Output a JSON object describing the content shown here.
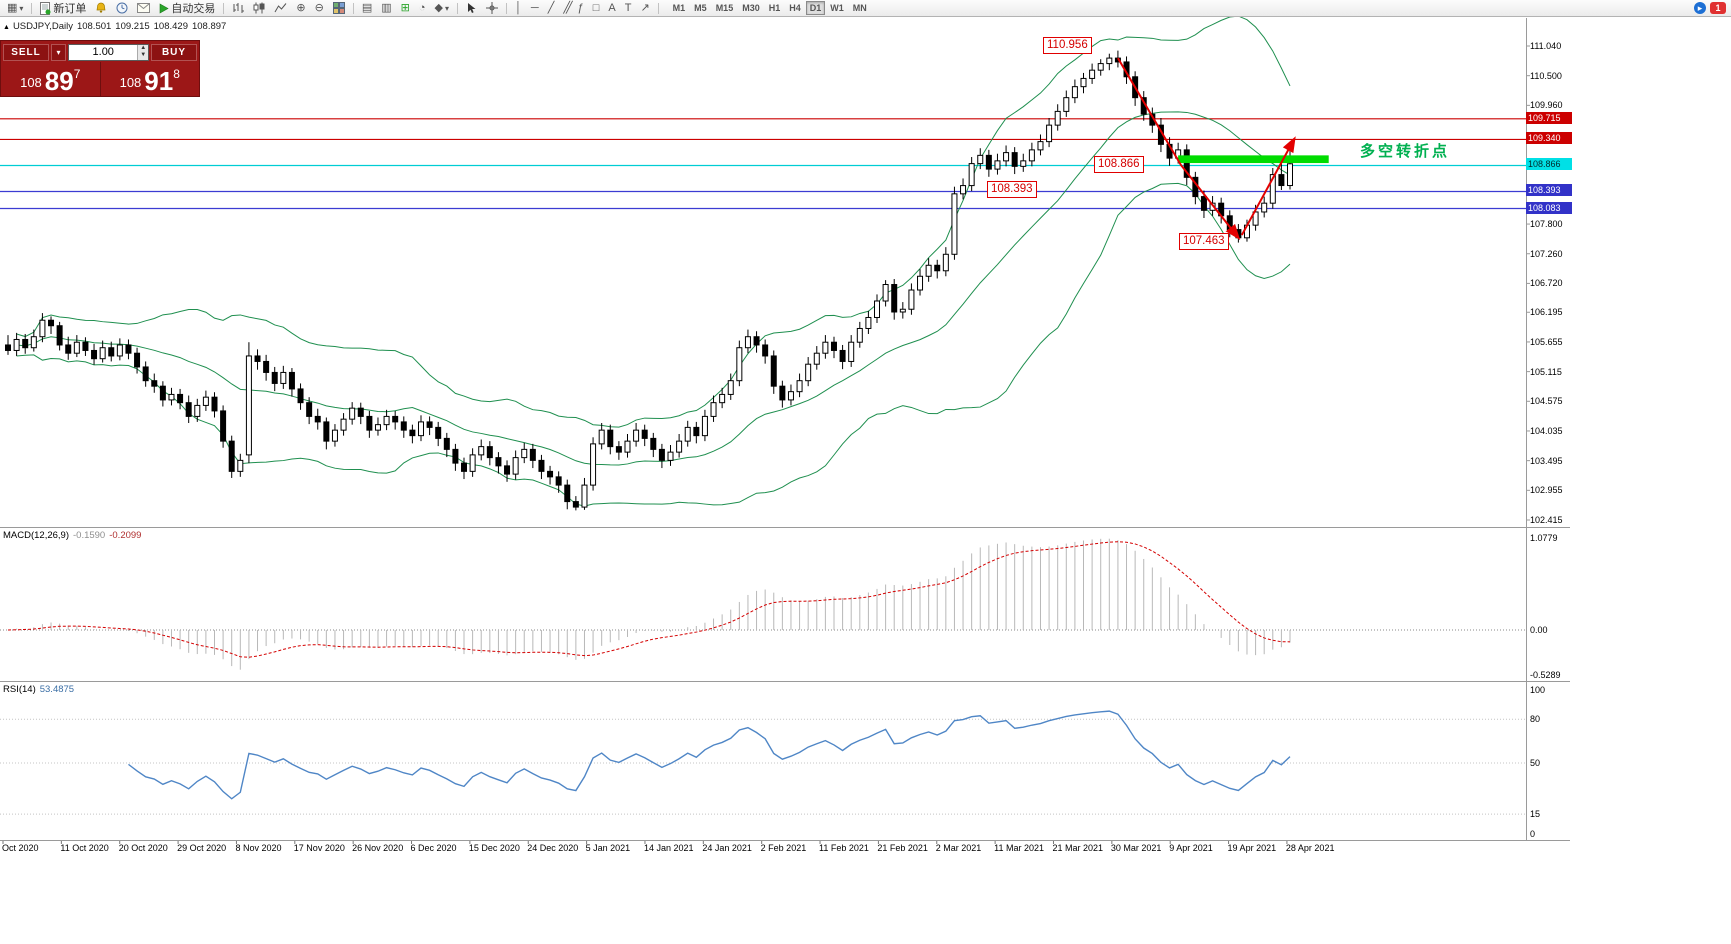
{
  "toolbar": {
    "new_order_label": "新订单",
    "autotrade_label": "自动交易",
    "badge": "1",
    "timeframes": [
      {
        "label": "M1",
        "active": false
      },
      {
        "label": "M5",
        "active": false
      },
      {
        "label": "M15",
        "active": false
      },
      {
        "label": "M30",
        "active": false
      },
      {
        "label": "H1",
        "active": false
      },
      {
        "label": "H4",
        "active": false
      },
      {
        "label": "D1",
        "active": true
      },
      {
        "label": "W1",
        "active": false
      },
      {
        "label": "MN",
        "active": false
      }
    ]
  },
  "symbol_info": {
    "symbol": "USDJPY,Daily",
    "open": "108.501",
    "high": "109.215",
    "low": "108.429",
    "close": "108.897"
  },
  "trade_widget": {
    "sell_label": "SELL",
    "buy_label": "BUY",
    "lot": "1.00",
    "sell": {
      "prefix": "108",
      "big": "89",
      "sup": "7"
    },
    "buy": {
      "prefix": "108",
      "big": "91",
      "sup": "8"
    }
  },
  "annotations": {
    "peak": "110.956",
    "zone": "108.866",
    "support": "108.393",
    "trough": "107.463",
    "note": "多空转折点"
  },
  "price_axis": {
    "ticks": [
      {
        "label": "111.040",
        "price": 111.04
      },
      {
        "label": "110.500",
        "price": 110.5
      },
      {
        "label": "109.960",
        "price": 109.96
      },
      {
        "label": "107.800",
        "price": 107.8
      },
      {
        "label": "107.260",
        "price": 107.26
      },
      {
        "label": "106.720",
        "price": 106.72
      },
      {
        "label": "106.195",
        "price": 106.195
      },
      {
        "label": "105.655",
        "price": 105.655
      },
      {
        "label": "105.115",
        "price": 105.115
      },
      {
        "label": "104.575",
        "price": 104.575
      },
      {
        "label": "104.035",
        "price": 104.035
      },
      {
        "label": "103.495",
        "price": 103.495
      },
      {
        "label": "102.955",
        "price": 102.955
      },
      {
        "label": "102.415",
        "price": 102.415
      }
    ]
  },
  "overlays": {
    "hlines": [
      {
        "label": "109.715",
        "price": 109.715,
        "line_color": "#cc0000",
        "bg": "#cc0000",
        "fg": "#ffffff"
      },
      {
        "label": "109.340",
        "price": 109.34,
        "line_color": "#cc0000",
        "bg": "#cc0000",
        "fg": "#ffffff"
      },
      {
        "label": "108.866",
        "price": 108.866,
        "line_color": "#00cdd4",
        "bg": "#00e0e6",
        "fg": "#00292b"
      },
      {
        "label": "108.393",
        "price": 108.393,
        "line_color": "#3c3cd2",
        "bg": "#3232c8",
        "fg": "#ffffff"
      },
      {
        "label": "108.083",
        "price": 108.083,
        "line_color": "#3c3cd2",
        "bg": "#3232c8",
        "fg": "#ffffff"
      }
    ],
    "turning_zone": {
      "from_day": 136,
      "to_day": 153.5,
      "top_price": 109.05,
      "bottom_price": 108.91,
      "color": "#00dc00"
    },
    "trend_lines": [
      {
        "points": [
          [
            129,
            110.82
          ],
          [
            136.3,
            108.88
          ],
          [
            143,
            107.55
          ]
        ],
        "color": "#e30000"
      },
      {
        "points": [
          [
            143.4,
            107.6
          ],
          [
            149.5,
            109.35
          ]
        ],
        "color": "#e30000"
      }
    ]
  },
  "indicators": {
    "bollinger": {
      "period": 20,
      "deviation": 2,
      "color": "#1f8f4f"
    },
    "macd": {
      "label": "MACD(12,26,9)",
      "value_main": "-0.1590",
      "value_signal": "-0.2099",
      "fast": 12,
      "slow": 26,
      "signal": 9,
      "axis_labels": [
        {
          "label": "1.0779",
          "value": 1.0779
        },
        {
          "label": "0.00",
          "value": 0
        },
        {
          "label": "-0.5289",
          "value": -0.5289
        }
      ],
      "hist_color": "#b8b8b8",
      "signal_color": "#d40000"
    },
    "rsi": {
      "label": "RSI(14)",
      "value": "53.4875",
      "period": 14,
      "color": "#4f86c6",
      "axis_labels": [
        {
          "label": "100",
          "value": 100
        },
        {
          "label": "80",
          "value": 80
        },
        {
          "label": "50",
          "value": 50
        },
        {
          "label": "15",
          "value": 15
        },
        {
          "label": "0",
          "value": 0
        }
      ],
      "levels": [
        80,
        50,
        15
      ]
    }
  },
  "chart_data": {
    "type": "candlestick",
    "symbol": "USDJPY",
    "timeframe": "Daily",
    "ylim": [
      102.415,
      111.04
    ],
    "dates": [
      "Oct 2020",
      "11 Oct 2020",
      "20 Oct 2020",
      "29 Oct 2020",
      "8 Nov 2020",
      "17 Nov 2020",
      "26 Nov 2020",
      "6 Dec 2020",
      "15 Dec 2020",
      "24 Dec 2020",
      "5 Jan 2021",
      "14 Jan 2021",
      "24 Jan 2021",
      "2 Feb 2021",
      "11 Feb 2021",
      "21 Feb 2021",
      "2 Mar 2021",
      "11 Mar 2021",
      "21 Mar 2021",
      "30 Mar 2021",
      "9 Apr 2021",
      "19 Apr 2021",
      "28 Apr 2021"
    ],
    "candles": [
      [
        105.6,
        105.78,
        105.42,
        105.5
      ],
      [
        105.5,
        105.82,
        105.4,
        105.7
      ],
      [
        105.7,
        105.8,
        105.44,
        105.55
      ],
      [
        105.55,
        105.88,
        105.48,
        105.75
      ],
      [
        105.75,
        106.18,
        105.65,
        106.05
      ],
      [
        106.05,
        106.12,
        105.8,
        105.95
      ],
      [
        105.95,
        106.02,
        105.5,
        105.6
      ],
      [
        105.6,
        105.75,
        105.33,
        105.45
      ],
      [
        105.45,
        105.78,
        105.38,
        105.65
      ],
      [
        105.65,
        105.74,
        105.4,
        105.5
      ],
      [
        105.5,
        105.62,
        105.24,
        105.35
      ],
      [
        105.35,
        105.68,
        105.28,
        105.55
      ],
      [
        105.55,
        105.66,
        105.3,
        105.4
      ],
      [
        105.4,
        105.72,
        105.32,
        105.6
      ],
      [
        105.6,
        105.7,
        105.34,
        105.45
      ],
      [
        105.45,
        105.55,
        105.08,
        105.2
      ],
      [
        105.2,
        105.3,
        104.84,
        104.95
      ],
      [
        104.95,
        105.08,
        104.73,
        104.85
      ],
      [
        104.85,
        104.94,
        104.48,
        104.6
      ],
      [
        104.6,
        104.82,
        104.5,
        104.7
      ],
      [
        104.7,
        104.8,
        104.43,
        104.55
      ],
      [
        104.55,
        104.68,
        104.18,
        104.3
      ],
      [
        104.3,
        104.62,
        104.2,
        104.5
      ],
      [
        104.5,
        104.77,
        104.4,
        104.65
      ],
      [
        104.65,
        104.74,
        104.28,
        104.4
      ],
      [
        104.4,
        104.5,
        103.73,
        103.85
      ],
      [
        103.85,
        103.95,
        103.18,
        103.3
      ],
      [
        103.3,
        103.62,
        103.2,
        103.5
      ],
      [
        103.6,
        105.65,
        103.45,
        105.4
      ],
      [
        105.4,
        105.52,
        105.15,
        105.3
      ],
      [
        105.3,
        105.42,
        104.95,
        105.1
      ],
      [
        105.1,
        105.2,
        104.76,
        104.9
      ],
      [
        104.9,
        105.22,
        104.8,
        105.1
      ],
      [
        105.1,
        105.18,
        104.66,
        104.8
      ],
      [
        104.8,
        104.9,
        104.42,
        104.55
      ],
      [
        104.55,
        104.65,
        104.16,
        104.3
      ],
      [
        104.3,
        104.44,
        104.06,
        104.2
      ],
      [
        104.2,
        104.28,
        103.7,
        103.85
      ],
      [
        103.85,
        104.16,
        103.75,
        104.05
      ],
      [
        104.05,
        104.36,
        103.95,
        104.25
      ],
      [
        104.25,
        104.56,
        104.15,
        104.45
      ],
      [
        104.45,
        104.55,
        104.16,
        104.3
      ],
      [
        104.3,
        104.4,
        103.91,
        104.05
      ],
      [
        104.05,
        104.28,
        103.95,
        104.15
      ],
      [
        104.15,
        104.42,
        104.05,
        104.3
      ],
      [
        104.3,
        104.4,
        104.06,
        104.2
      ],
      [
        104.2,
        104.3,
        103.91,
        104.05
      ],
      [
        104.05,
        104.15,
        103.81,
        103.95
      ],
      [
        103.95,
        104.32,
        103.85,
        104.2
      ],
      [
        104.2,
        104.3,
        103.96,
        104.1
      ],
      [
        104.1,
        104.2,
        103.76,
        103.9
      ],
      [
        103.9,
        104.0,
        103.56,
        103.7
      ],
      [
        103.7,
        103.8,
        103.31,
        103.45
      ],
      [
        103.45,
        103.55,
        103.16,
        103.3
      ],
      [
        103.3,
        103.72,
        103.2,
        103.6
      ],
      [
        103.6,
        103.88,
        103.5,
        103.75
      ],
      [
        103.75,
        103.85,
        103.41,
        103.55
      ],
      [
        103.55,
        103.65,
        103.26,
        103.4
      ],
      [
        103.4,
        103.5,
        103.11,
        103.25
      ],
      [
        103.25,
        103.68,
        103.15,
        103.55
      ],
      [
        103.55,
        103.82,
        103.45,
        103.7
      ],
      [
        103.7,
        103.8,
        103.36,
        103.5
      ],
      [
        103.5,
        103.6,
        103.16,
        103.3
      ],
      [
        103.3,
        103.4,
        103.06,
        103.2
      ],
      [
        103.2,
        103.3,
        102.91,
        103.05
      ],
      [
        103.05,
        103.15,
        102.61,
        102.75
      ],
      [
        102.75,
        102.85,
        102.59,
        102.65
      ],
      [
        102.65,
        103.18,
        102.6,
        103.05
      ],
      [
        103.05,
        103.92,
        102.95,
        103.8
      ],
      [
        103.8,
        104.18,
        103.7,
        104.05
      ],
      [
        104.05,
        104.15,
        103.61,
        103.75
      ],
      [
        103.75,
        103.85,
        103.51,
        103.65
      ],
      [
        103.65,
        103.98,
        103.55,
        103.85
      ],
      [
        103.85,
        104.18,
        103.75,
        104.05
      ],
      [
        104.05,
        104.15,
        103.76,
        103.9
      ],
      [
        103.9,
        104.0,
        103.56,
        103.7
      ],
      [
        103.7,
        103.8,
        103.36,
        103.5
      ],
      [
        103.5,
        103.78,
        103.4,
        103.65
      ],
      [
        103.65,
        103.98,
        103.55,
        103.85
      ],
      [
        103.85,
        104.22,
        103.75,
        104.1
      ],
      [
        104.1,
        104.2,
        103.81,
        103.95
      ],
      [
        103.95,
        104.42,
        103.85,
        104.3
      ],
      [
        104.3,
        104.68,
        104.2,
        104.55
      ],
      [
        104.55,
        104.82,
        104.45,
        104.7
      ],
      [
        104.7,
        105.08,
        104.6,
        104.95
      ],
      [
        104.95,
        105.68,
        104.85,
        105.55
      ],
      [
        105.55,
        105.88,
        105.45,
        105.75
      ],
      [
        105.75,
        105.85,
        105.46,
        105.6
      ],
      [
        105.6,
        105.7,
        105.26,
        105.4
      ],
      [
        105.4,
        105.5,
        104.71,
        104.85
      ],
      [
        104.85,
        104.95,
        104.46,
        104.6
      ],
      [
        104.6,
        104.88,
        104.5,
        104.75
      ],
      [
        104.75,
        105.08,
        104.65,
        104.95
      ],
      [
        104.95,
        105.38,
        104.85,
        105.25
      ],
      [
        105.25,
        105.58,
        105.15,
        105.45
      ],
      [
        105.45,
        105.78,
        105.35,
        105.65
      ],
      [
        105.65,
        105.75,
        105.36,
        105.5
      ],
      [
        105.5,
        105.6,
        105.16,
        105.3
      ],
      [
        105.3,
        105.78,
        105.2,
        105.65
      ],
      [
        105.65,
        106.02,
        105.55,
        105.9
      ],
      [
        105.9,
        106.22,
        105.8,
        106.1
      ],
      [
        106.1,
        106.52,
        106.0,
        106.4
      ],
      [
        106.4,
        106.78,
        106.3,
        106.7
      ],
      [
        106.7,
        106.8,
        106.06,
        106.2
      ],
      [
        106.2,
        106.38,
        106.08,
        106.25
      ],
      [
        106.25,
        106.72,
        106.15,
        106.6
      ],
      [
        106.6,
        106.98,
        106.5,
        106.85
      ],
      [
        106.85,
        107.18,
        106.75,
        107.05
      ],
      [
        107.05,
        107.15,
        106.81,
        106.95
      ],
      [
        106.95,
        107.38,
        106.85,
        107.25
      ],
      [
        107.25,
        108.48,
        107.15,
        108.35
      ],
      [
        108.35,
        108.63,
        108.25,
        108.5
      ],
      [
        108.5,
        109.02,
        108.4,
        108.9
      ],
      [
        108.9,
        109.18,
        108.8,
        109.05
      ],
      [
        109.05,
        109.15,
        108.66,
        108.8
      ],
      [
        108.8,
        109.08,
        108.7,
        108.95
      ],
      [
        108.95,
        109.23,
        108.85,
        109.1
      ],
      [
        109.1,
        109.2,
        108.71,
        108.85
      ],
      [
        108.85,
        109.08,
        108.75,
        108.95
      ],
      [
        108.95,
        109.28,
        108.85,
        109.15
      ],
      [
        109.15,
        109.43,
        109.05,
        109.3
      ],
      [
        109.3,
        109.73,
        109.2,
        109.6
      ],
      [
        109.6,
        109.98,
        109.5,
        109.85
      ],
      [
        109.85,
        110.23,
        109.75,
        110.1
      ],
      [
        110.1,
        110.43,
        110.0,
        110.3
      ],
      [
        110.3,
        110.55,
        110.18,
        110.45
      ],
      [
        110.45,
        110.72,
        110.35,
        110.6
      ],
      [
        110.6,
        110.8,
        110.5,
        110.72
      ],
      [
        110.72,
        110.9,
        110.6,
        110.82
      ],
      [
        110.82,
        110.956,
        110.65,
        110.75
      ],
      [
        110.75,
        110.85,
        110.35,
        110.48
      ],
      [
        110.48,
        110.58,
        109.95,
        110.1
      ],
      [
        110.1,
        110.22,
        109.68,
        109.8
      ],
      [
        109.8,
        109.92,
        109.46,
        109.6
      ],
      [
        109.6,
        109.73,
        109.11,
        109.25
      ],
      [
        109.25,
        109.38,
        108.86,
        109.0
      ],
      [
        109.0,
        109.28,
        108.9,
        109.15
      ],
      [
        109.15,
        109.25,
        108.51,
        108.65
      ],
      [
        108.65,
        108.75,
        108.16,
        108.3
      ],
      [
        108.3,
        108.41,
        107.91,
        108.05
      ],
      [
        108.05,
        108.31,
        107.95,
        108.18
      ],
      [
        108.18,
        108.28,
        107.81,
        107.95
      ],
      [
        107.95,
        108.05,
        107.56,
        107.7
      ],
      [
        107.7,
        107.8,
        107.463,
        107.55
      ],
      [
        107.55,
        107.88,
        107.48,
        107.78
      ],
      [
        107.78,
        108.15,
        107.68,
        108.02
      ],
      [
        108.02,
        108.3,
        107.92,
        108.18
      ],
      [
        108.18,
        108.82,
        108.08,
        108.7
      ],
      [
        108.7,
        108.95,
        108.42,
        108.501
      ],
      [
        108.501,
        109.215,
        108.429,
        108.897
      ]
    ]
  }
}
